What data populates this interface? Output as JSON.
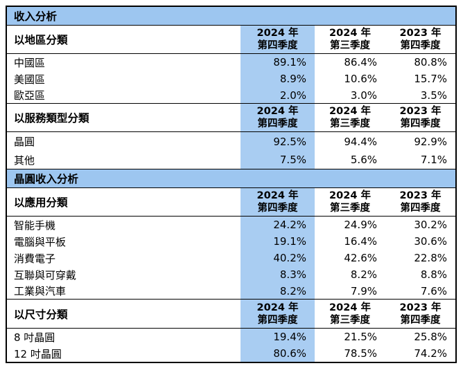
{
  "colors": {
    "section_bar_bg": "#9DC6F0",
    "highlight_column_bg": "#A9CDF2",
    "border": "#000000",
    "text": "#000000",
    "page_bg": "#FFFFFF"
  },
  "column_headers": [
    {
      "line1": "2024 年",
      "line2": "第四季度"
    },
    {
      "line1": "2024 年",
      "line2": "第三季度"
    },
    {
      "line1": "2023 年",
      "line2": "第四季度"
    }
  ],
  "sections": [
    {
      "title": "收入分析",
      "groups": [
        {
          "label": "以地區分類",
          "rows": [
            {
              "label": "中國區",
              "values": [
                "89.1%",
                "86.4%",
                "80.8%"
              ]
            },
            {
              "label": "美國區",
              "values": [
                "8.9%",
                "10.6%",
                "15.7%"
              ]
            },
            {
              "label": "歐亞區",
              "values": [
                "2.0%",
                "3.0%",
                "3.5%"
              ]
            }
          ]
        },
        {
          "label": "以服務類型分類",
          "rows": [
            {
              "label": "晶圓",
              "values": [
                "92.5%",
                "94.4%",
                "92.9%"
              ]
            },
            {
              "label": "其他",
              "values": [
                "7.5%",
                "5.6%",
                "7.1%"
              ]
            }
          ]
        }
      ]
    },
    {
      "title": "晶圓收入分析",
      "groups": [
        {
          "label": "以應用分類",
          "rows": [
            {
              "label": "智能手機",
              "values": [
                "24.2%",
                "24.9%",
                "30.2%"
              ]
            },
            {
              "label": "電腦與平板",
              "values": [
                "19.1%",
                "16.4%",
                "30.6%"
              ]
            },
            {
              "label": "消費電子",
              "values": [
                "40.2%",
                "42.6%",
                "22.8%"
              ]
            },
            {
              "label": "互聯與可穿戴",
              "values": [
                "8.3%",
                "8.2%",
                "8.8%"
              ]
            },
            {
              "label": "工業與汽車",
              "values": [
                "8.2%",
                "7.9%",
                "7.6%"
              ]
            }
          ]
        },
        {
          "label": "以尺寸分類",
          "rows": [
            {
              "label": "8 吋晶圓",
              "values": [
                "19.4%",
                "21.5%",
                "25.8%"
              ]
            },
            {
              "label": "12 吋晶圓",
              "values": [
                "80.6%",
                "78.5%",
                "74.2%"
              ]
            }
          ]
        }
      ]
    }
  ]
}
